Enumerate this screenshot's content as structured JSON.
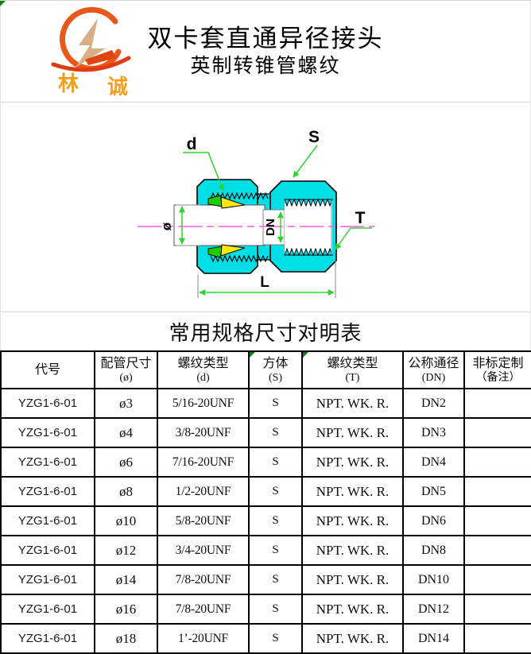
{
  "header": {
    "logo": {
      "brand": "林诚",
      "char_left": "林",
      "char_right": "诚"
    },
    "title": "双卡套直通异径接头",
    "subtitle": "英制转锥管螺纹"
  },
  "diagram": {
    "labels": {
      "thread_d": "d",
      "hex_s": "S",
      "thread_t": "T",
      "length_l": "L",
      "bore_dn": "DN",
      "pipe_diameter": "ø"
    },
    "colors": {
      "body_fill": "#00dfe6",
      "ferrule_front": "#1ecc00",
      "ferrule_back": "#ffe800",
      "dimension_green": "#2fd32f",
      "centerline_magenta": "#ff5cec"
    }
  },
  "spec_table": {
    "title": "常用规格尺寸对明表",
    "columns": [
      {
        "label": "代号",
        "sub": ""
      },
      {
        "label": "配管尺寸",
        "sub": "(ø)"
      },
      {
        "label": "螺纹类型",
        "sub": "(d)"
      },
      {
        "label": "方体",
        "sub": "(S)",
        "corner_mark": true
      },
      {
        "label": "螺纹类型",
        "sub": "(T)",
        "corner_mark": true
      },
      {
        "label": "公称通径",
        "sub": "(DN)"
      },
      {
        "label": "非标定制",
        "sub": "（备注）"
      }
    ],
    "rows": [
      [
        "YZG1-6-01",
        "ø3",
        "5/16-20UNF",
        "S",
        "NPT. WK. R.",
        "DN2",
        ""
      ],
      [
        "YZG1-6-01",
        "ø4",
        "3/8-20UNF",
        "S",
        "NPT. WK. R.",
        "DN3",
        ""
      ],
      [
        "YZG1-6-01",
        "ø6",
        "7/16-20UNF",
        "S",
        "NPT. WK. R.",
        "DN4",
        ""
      ],
      [
        "YZG1-6-01",
        "ø8",
        "1/2-20UNF",
        "S",
        "NPT. WK. R.",
        "DN5",
        ""
      ],
      [
        "YZG1-6-01",
        "ø10",
        "5/8-20UNF",
        "S",
        "NPT. WK. R.",
        "DN6",
        ""
      ],
      [
        "YZG1-6-01",
        "ø12",
        "3/4-20UNF",
        "S",
        "NPT. WK. R.",
        "DN8",
        ""
      ],
      [
        "YZG1-6-01",
        "ø14",
        "7/8-20UNF",
        "S",
        "NPT. WK. R.",
        "DN10",
        ""
      ],
      [
        "YZG1-6-01",
        "ø16",
        "7/8-20UNF",
        "S",
        "NPT. WK. R.",
        "DN12",
        ""
      ],
      [
        "YZG1-6-01",
        "ø18",
        "1’-20UNF",
        "S",
        "NPT. WK. R.",
        "DN14",
        ""
      ]
    ]
  }
}
